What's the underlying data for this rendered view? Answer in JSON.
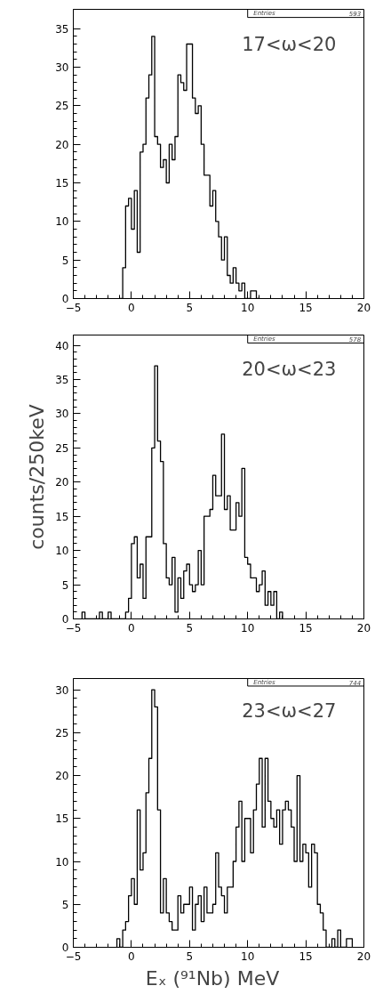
{
  "chart_data": [
    {
      "type": "histogram",
      "annotations": [
        "17<ω<20",
        "Entries",
        "593"
      ],
      "color": "#000000",
      "bins": [
        -1,
        -0.75,
        -0.5,
        -0.25,
        0,
        0.25,
        0.5,
        0.75,
        1,
        1.25,
        1.5,
        1.75,
        2,
        2.25,
        2.5,
        2.75,
        3,
        3.25,
        3.5,
        3.75,
        4,
        4.25,
        4.5,
        4.75,
        5,
        5.25,
        5.5,
        5.75,
        6,
        6.25,
        6.5,
        6.75,
        7,
        7.25,
        7.5,
        7.75,
        8,
        8.25,
        8.5,
        8.75,
        9,
        9.25,
        9.5,
        9.75,
        10,
        10.25,
        10.5,
        10.75,
        11
      ],
      "values": [
        0,
        4,
        12,
        13,
        9,
        14,
        6,
        19,
        20,
        26,
        29,
        34,
        21,
        20,
        17,
        18,
        15,
        20,
        18,
        21,
        29,
        28,
        27,
        33,
        33,
        26,
        24,
        25,
        20,
        16,
        16,
        12,
        14,
        10,
        8,
        5,
        8,
        3,
        2,
        4,
        2,
        1,
        2,
        0,
        0,
        1,
        1,
        0
      ],
      "xlim": [
        -5,
        20
      ],
      "xticks": [
        -5,
        0,
        5,
        10,
        15,
        20
      ],
      "ylim": [
        0,
        37.5
      ],
      "yticks": [
        0,
        5,
        10,
        15,
        20,
        25,
        30,
        35
      ],
      "grid": false
    },
    {
      "type": "histogram",
      "annotations": [
        "20<ω<23",
        "Entries",
        "578"
      ],
      "ylabel": "counts/250keV",
      "color": "#000000",
      "bins": [
        -4.25,
        -4,
        -3.75,
        -3.5,
        -3.25,
        -3,
        -2.75,
        -2.5,
        -2.25,
        -2,
        -1.75,
        -1.5,
        -1.25,
        -1,
        -0.75,
        -0.5,
        -0.25,
        0,
        0.25,
        0.5,
        0.75,
        1,
        1.25,
        1.5,
        1.75,
        2,
        2.25,
        2.5,
        2.75,
        3,
        3.25,
        3.5,
        3.75,
        4,
        4.25,
        4.5,
        4.75,
        5,
        5.25,
        5.5,
        5.75,
        6,
        6.25,
        6.5,
        6.75,
        7,
        7.25,
        7.5,
        7.75,
        8,
        8.25,
        8.5,
        8.75,
        9,
        9.25,
        9.5,
        9.75,
        10,
        10.25,
        10.5,
        10.75,
        11,
        11.25,
        11.5,
        11.75,
        12,
        12.25,
        12.5,
        12.75,
        13
      ],
      "values": [
        1,
        0,
        0,
        0,
        0,
        0,
        1,
        0,
        0,
        1,
        0,
        0,
        0,
        0,
        0,
        1,
        3,
        11,
        12,
        6,
        8,
        3,
        12,
        12,
        25,
        37,
        26,
        23,
        11,
        6,
        5,
        9,
        1,
        6,
        3,
        7,
        8,
        5,
        4,
        5,
        10,
        5,
        15,
        15,
        16,
        21,
        18,
        18,
        27,
        16,
        18,
        13,
        13,
        17,
        15,
        22,
        9,
        8,
        6,
        6,
        4,
        5,
        7,
        2,
        4,
        2,
        4,
        0,
        1
      ],
      "xlim": [
        -5,
        20
      ],
      "xticks": [
        -5,
        0,
        5,
        10,
        15,
        20
      ],
      "ylim": [
        0,
        41.5
      ],
      "yticks": [
        0,
        5,
        10,
        15,
        20,
        25,
        30,
        35,
        40
      ],
      "grid": false
    },
    {
      "type": "histogram",
      "annotations": [
        "23<ω<27",
        "Entries",
        "744"
      ],
      "xlabel": "Eₓ (⁹¹Nb)   MeV",
      "color": "#000000",
      "bins": [
        -1.25,
        -1,
        -0.75,
        -0.5,
        -0.25,
        0,
        0.25,
        0.5,
        0.75,
        1,
        1.25,
        1.5,
        1.75,
        2,
        2.25,
        2.5,
        2.75,
        3,
        3.25,
        3.5,
        3.75,
        4,
        4.25,
        4.5,
        4.75,
        5,
        5.25,
        5.5,
        5.75,
        6,
        6.25,
        6.5,
        6.75,
        7,
        7.25,
        7.5,
        7.75,
        8,
        8.25,
        8.5,
        8.75,
        9,
        9.25,
        9.5,
        9.75,
        10,
        10.25,
        10.5,
        10.75,
        11,
        11.25,
        11.5,
        11.75,
        12,
        12.25,
        12.5,
        12.75,
        13,
        13.25,
        13.5,
        13.75,
        14,
        14.25,
        14.5,
        14.75,
        15,
        15.25,
        15.5,
        15.75,
        16,
        16.25,
        16.5,
        16.75,
        17,
        17.25,
        17.5,
        17.75,
        18,
        18.25,
        18.5,
        18.75,
        19
      ],
      "values": [
        1,
        0,
        2,
        3,
        6,
        8,
        5,
        16,
        9,
        11,
        18,
        22,
        30,
        28,
        16,
        4,
        8,
        4,
        3,
        2,
        2,
        6,
        4,
        5,
        5,
        7,
        2,
        5,
        6,
        3,
        7,
        4,
        4,
        5,
        11,
        7,
        6,
        4,
        7,
        7,
        10,
        14,
        17,
        10,
        15,
        15,
        11,
        16,
        19,
        22,
        14,
        22,
        17,
        15,
        14,
        16,
        12,
        16,
        17,
        16,
        14,
        10,
        20,
        10,
        12,
        11,
        7,
        12,
        11,
        5,
        4,
        2,
        0,
        0,
        1,
        0,
        2,
        0,
        0,
        1,
        1
      ],
      "xlim": [
        -5,
        20
      ],
      "xticks": [
        -5,
        0,
        5,
        10,
        15,
        20
      ],
      "ylim": [
        0,
        31.3
      ],
      "yticks": [
        0,
        5,
        10,
        15,
        20,
        25,
        30
      ],
      "grid": false
    }
  ]
}
